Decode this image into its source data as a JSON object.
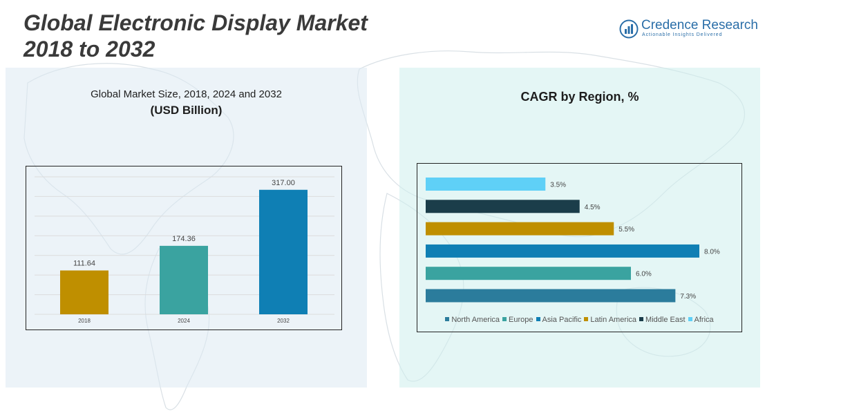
{
  "header": {
    "title_line1": "Global Electronic Display Market",
    "title_line2": "2018 to 2032"
  },
  "logo": {
    "name": "Credence Research",
    "tagline": "Actionable Insights Delivered",
    "icon": "bar-chart-logo-icon"
  },
  "left_panel": {
    "title": "Global Market Size, 2018, 2024 and 2032",
    "subtitle": "(USD Billion)"
  },
  "right_panel": {
    "title": "CAGR by Region, %"
  },
  "chart_data": [
    {
      "type": "bar",
      "categories": [
        "2018",
        "2024",
        "2032"
      ],
      "values": [
        111.64,
        174.36,
        317.0
      ],
      "value_labels": [
        "111.64",
        "174.36",
        "317.00"
      ],
      "colors": [
        "#bf8f00",
        "#3aa3a0",
        "#0f7fb4"
      ],
      "ylim": [
        0,
        350
      ],
      "grid": true,
      "gridlines": 7
    },
    {
      "type": "bar",
      "orientation": "horizontal",
      "categories": [
        "North America",
        "Europe",
        "Asia Pacific",
        "Latin America",
        "Middle East",
        "Africa"
      ],
      "values": [
        7.3,
        6.0,
        8.0,
        5.5,
        4.5,
        3.5
      ],
      "value_labels": [
        "7.3%",
        "6.0%",
        "8.0%",
        "5.5%",
        "4.5%",
        "3.5%"
      ],
      "colors": [
        "#2b7c9c",
        "#3aa3a0",
        "#0f7fb4",
        "#bf8f00",
        "#1b3d4a",
        "#5fd0f7"
      ],
      "xlim": [
        0,
        8.0
      ],
      "legend": "bottom"
    }
  ]
}
